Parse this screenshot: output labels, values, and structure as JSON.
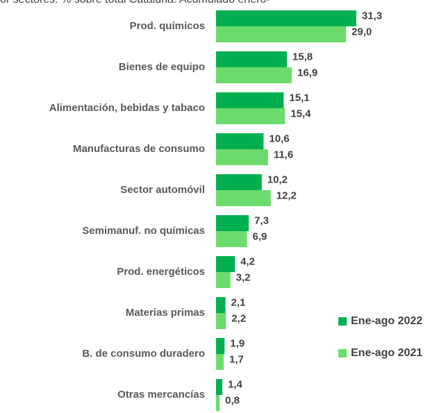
{
  "chart_data": {
    "type": "bar",
    "orientation": "horizontal",
    "title": "or sectores. % sobre total Cataluña. Acumulado enero-",
    "categories": [
      "Prod. químicos",
      "Bienes de equipo",
      "Alimentación, bebidas y tabaco",
      "Manufacturas de consumo",
      "Sector automóvil",
      "Semimanuf. no químicas",
      "Prod. energéticos",
      "Materias primas",
      "B. de consumo duradero",
      "Otras mercancías"
    ],
    "series": [
      {
        "name": "Ene-ago 2022",
        "color": "#00b050",
        "values": [
          31.3,
          15.8,
          15.1,
          10.6,
          10.2,
          7.3,
          4.2,
          2.1,
          1.9,
          1.4
        ],
        "value_labels": [
          "31,3",
          "15,8",
          "15,1",
          "10,6",
          "10,2",
          "7,3",
          "4,2",
          "2,1",
          "1,9",
          "1,4"
        ]
      },
      {
        "name": "Ene-ago 2021",
        "color": "#6bdc6b",
        "values": [
          29.0,
          16.9,
          15.4,
          11.6,
          12.2,
          6.9,
          3.2,
          2.2,
          1.7,
          0.8
        ],
        "value_labels": [
          "29,0",
          "16,9",
          "15,4",
          "11,6",
          "12,2",
          "6,9",
          "3,2",
          "2,2",
          "1,7",
          "0,8"
        ]
      }
    ],
    "legend": "right"
  }
}
